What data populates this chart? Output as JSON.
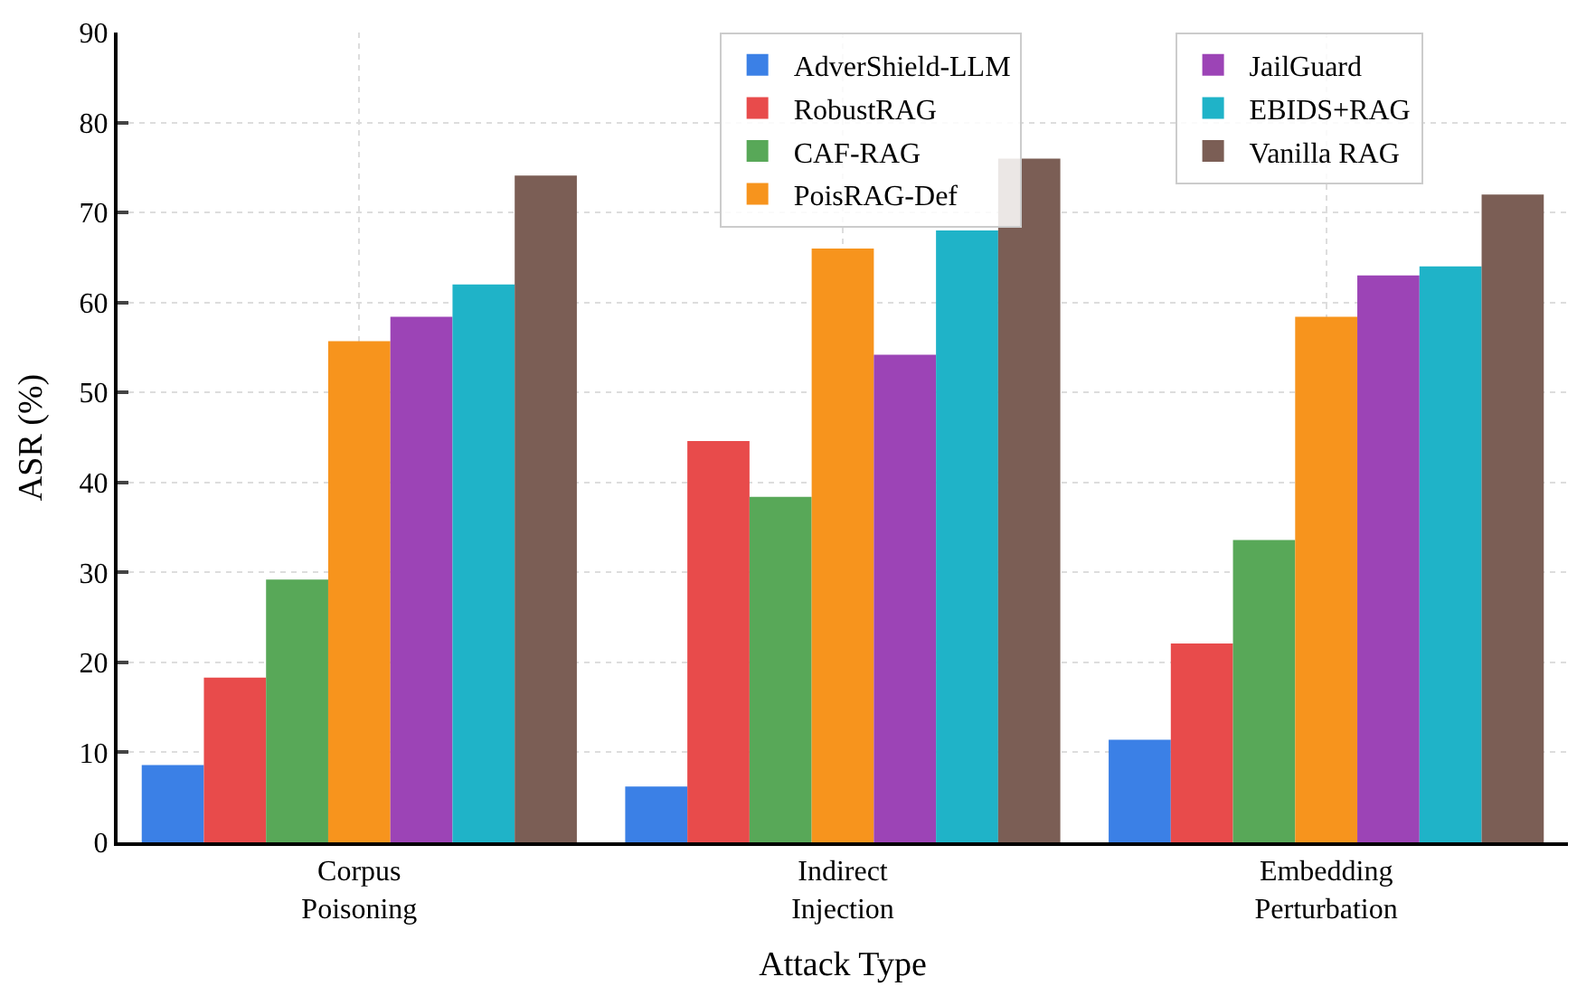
{
  "chart_data": {
    "type": "bar",
    "xlabel": "Attack Type",
    "ylabel": "ASR (%)",
    "categories": [
      "Corpus\nPoisoning",
      "Indirect\nInjection",
      "Embedding\nPerturbation"
    ],
    "series": [
      {
        "name": "AdverShield-LLM",
        "color": "#3b80e6",
        "values": [
          8.6,
          6.2,
          11.4
        ]
      },
      {
        "name": "RobustRAG",
        "color": "#e84b4b",
        "values": [
          18.3,
          44.6,
          22.1
        ]
      },
      {
        "name": "CAF-RAG",
        "color": "#58a858",
        "values": [
          29.2,
          38.4,
          33.6
        ]
      },
      {
        "name": "PoisRAG-Def",
        "color": "#f7941d",
        "values": [
          55.7,
          66,
          58.4
        ]
      },
      {
        "name": "JailGuard",
        "color": "#9c44b6",
        "values": [
          58.4,
          54.2,
          63
        ]
      },
      {
        "name": "EBIDS+RAG",
        "color": "#1fb3c8",
        "values": [
          62.0,
          68,
          64
        ]
      },
      {
        "name": "Vanilla RAG",
        "color": "#7b5e55",
        "values": [
          74.1,
          76,
          72
        ]
      }
    ],
    "ylim": [
      0,
      90
    ],
    "yticks": [
      0,
      10,
      20,
      30,
      40,
      50,
      60,
      70,
      80,
      90
    ],
    "grid": true,
    "legend": "top right"
  }
}
